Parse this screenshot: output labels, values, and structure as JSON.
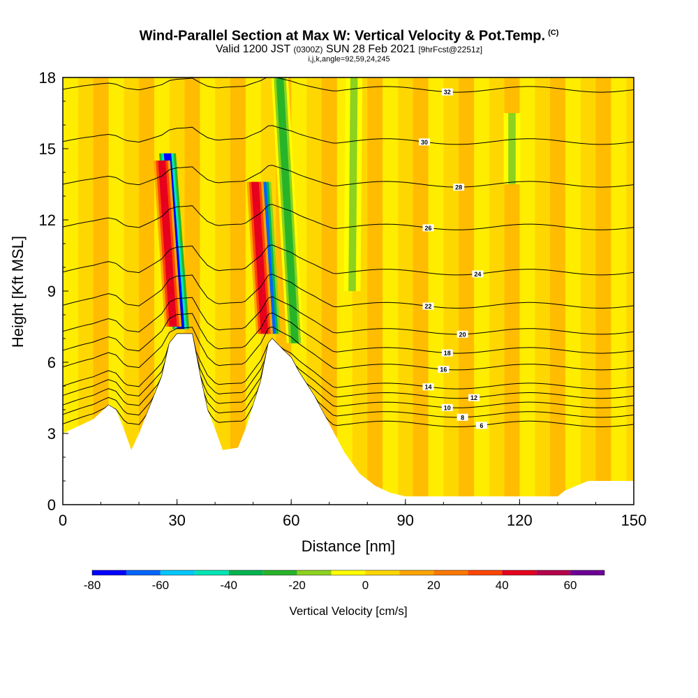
{
  "header": {
    "title": "Wind-Parallel Section at Max W: Vertical Velocity & Pot.Temp.",
    "copyright": "(C)",
    "valid_prefix": "Valid 1200 JST",
    "valid_utc": "(0300Z)",
    "valid_date": "SUN 28 Feb 2021",
    "forecast": "[9hrFcst@2251z]",
    "subtitle3": "i,j,k,angle=92,59,24,245"
  },
  "chart_data": {
    "type": "heatmap",
    "title": "Wind-Parallel Section at Max W: Vertical Velocity & Pot.Temp.",
    "xlabel": "Distance [nm]",
    "ylabel": "Height [Kft MSL]",
    "xlim": [
      0,
      150
    ],
    "ylim": [
      0,
      18
    ],
    "x_ticks": [
      0,
      30,
      60,
      90,
      120,
      150
    ],
    "y_ticks": [
      0,
      3,
      6,
      9,
      12,
      15,
      18
    ],
    "colorbar": {
      "label": "Vertical Velocity [cm/s]",
      "range": [
        -80,
        70
      ],
      "step": 10,
      "tick_values": [
        -80,
        -60,
        -40,
        -20,
        0,
        20,
        40,
        60
      ],
      "colors": [
        "#0000ff",
        "#0064ff",
        "#00c8ff",
        "#00e6b4",
        "#00b450",
        "#28b428",
        "#8cd21e",
        "#ffff00",
        "#ffd700",
        "#ffa500",
        "#ff7800",
        "#ff4600",
        "#e6001e",
        "#b4004b",
        "#6e0096"
      ]
    },
    "terrain_profile": [
      {
        "x": 0,
        "h": 3.0
      },
      {
        "x": 4,
        "h": 3.3
      },
      {
        "x": 8,
        "h": 3.6
      },
      {
        "x": 12,
        "h": 4.2
      },
      {
        "x": 14,
        "h": 4.0
      },
      {
        "x": 16,
        "h": 3.2
      },
      {
        "x": 18,
        "h": 2.3
      },
      {
        "x": 20,
        "h": 3.0
      },
      {
        "x": 22,
        "h": 3.8
      },
      {
        "x": 24,
        "h": 4.6
      },
      {
        "x": 26,
        "h": 5.4
      },
      {
        "x": 28,
        "h": 6.8
      },
      {
        "x": 30,
        "h": 7.2
      },
      {
        "x": 34,
        "h": 7.2
      },
      {
        "x": 36,
        "h": 5.5
      },
      {
        "x": 38,
        "h": 4.0
      },
      {
        "x": 40,
        "h": 3.2
      },
      {
        "x": 42,
        "h": 2.3
      },
      {
        "x": 46,
        "h": 2.4
      },
      {
        "x": 48,
        "h": 3.2
      },
      {
        "x": 50,
        "h": 4.2
      },
      {
        "x": 52,
        "h": 5.2
      },
      {
        "x": 54,
        "h": 6.8
      },
      {
        "x": 55,
        "h": 7.0
      },
      {
        "x": 58,
        "h": 6.5
      },
      {
        "x": 60,
        "h": 6.2
      },
      {
        "x": 62,
        "h": 5.6
      },
      {
        "x": 66,
        "h": 4.6
      },
      {
        "x": 70,
        "h": 3.4
      },
      {
        "x": 74,
        "h": 2.2
      },
      {
        "x": 78,
        "h": 1.3
      },
      {
        "x": 82,
        "h": 0.8
      },
      {
        "x": 86,
        "h": 0.5
      },
      {
        "x": 90,
        "h": 0.35
      },
      {
        "x": 130,
        "h": 0.35
      },
      {
        "x": 132,
        "h": 0.6
      },
      {
        "x": 138,
        "h": 1.0
      },
      {
        "x": 145,
        "h": 1.0
      },
      {
        "x": 150,
        "h": 1.0
      }
    ],
    "theta_contours": [
      {
        "label": "6",
        "base": 3.4,
        "label_x": 110
      },
      {
        "label": "8",
        "base": 3.8,
        "label_x": 105
      },
      {
        "label": "10",
        "base": 4.2,
        "label_x": 101
      },
      {
        "label": "12",
        "base": 4.6,
        "label_x": 108
      },
      {
        "label": "14",
        "base": 5.0,
        "label_x": 96
      },
      {
        "label": "16",
        "base": 5.8,
        "label_x": 100
      },
      {
        "label": "18",
        "base": 6.5,
        "label_x": 101
      },
      {
        "label": "20",
        "base": 7.3,
        "label_x": 105
      },
      {
        "label": "22",
        "base": 8.4,
        "label_x": 96
      },
      {
        "label": "24",
        "base": 9.8,
        "label_x": 109
      },
      {
        "label": "26",
        "base": 11.7,
        "label_x": 96
      },
      {
        "label": "28",
        "base": 13.5,
        "label_x": 104
      },
      {
        "label": "30",
        "base": 15.3,
        "label_x": 95
      },
      {
        "label": "32",
        "base": 17.5,
        "label_x": 101
      }
    ],
    "velocity_features": [
      {
        "x": 31,
        "ytop": 14.8,
        "ybot": 7.4,
        "lean": -3.5,
        "value": -75
      },
      {
        "x": 29,
        "ytop": 14.5,
        "ybot": 7.5,
        "lean": -3.0,
        "value": 45
      },
      {
        "x": 55,
        "ytop": 13.6,
        "ybot": 7.2,
        "lean": -2.5,
        "value": -65
      },
      {
        "x": 53,
        "ytop": 13.6,
        "ybot": 7.2,
        "lean": -2.5,
        "value": 45
      },
      {
        "x": 61,
        "ytop": 18.0,
        "ybot": 6.8,
        "lean": -4.0,
        "value": -25
      },
      {
        "x": 76,
        "ytop": 18.0,
        "ybot": 9.0,
        "lean": 0.5,
        "value": -15
      },
      {
        "x": 118,
        "ytop": 16.5,
        "ybot": 13.5,
        "lean": 0.0,
        "value": -15
      }
    ]
  }
}
